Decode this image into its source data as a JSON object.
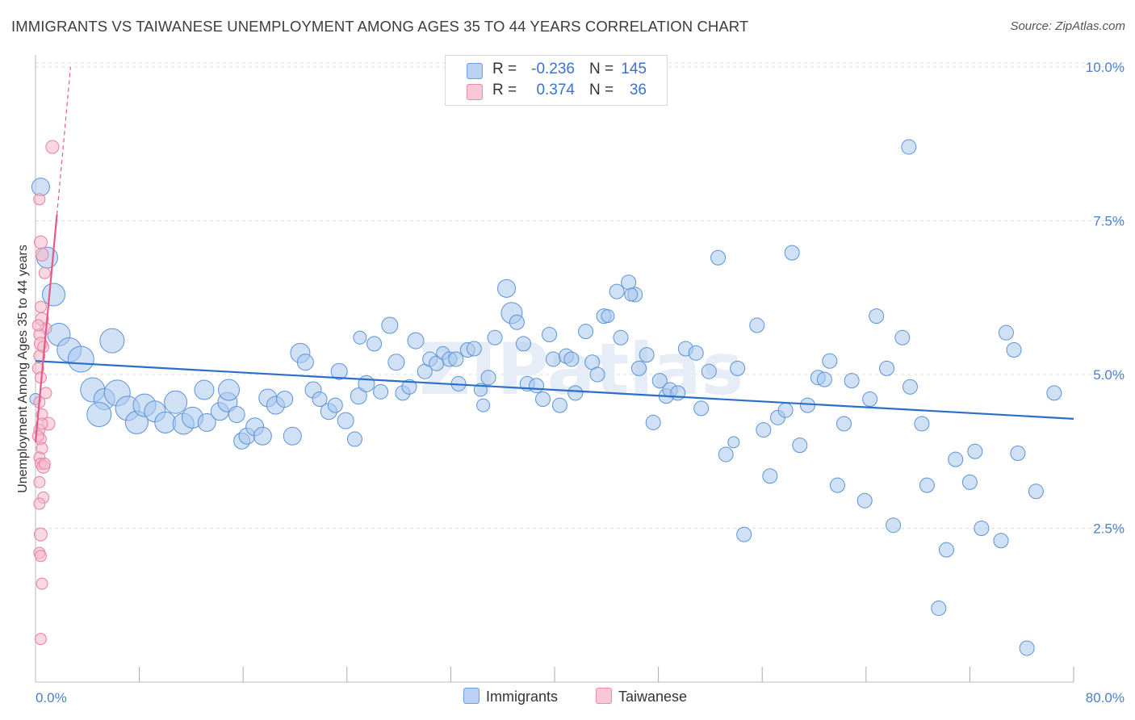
{
  "title": "IMMIGRANTS VS TAIWANESE UNEMPLOYMENT AMONG AGES 35 TO 44 YEARS CORRELATION CHART",
  "source": "Source: ZipAtlas.com",
  "watermark": "ZIPatlas",
  "legend": {
    "immigrants": {
      "r_label": "R =",
      "r_value": "-0.236",
      "n_label": "N =",
      "n_value": "145"
    },
    "taiwanese": {
      "r_label": "R =",
      "r_value": "0.374",
      "n_label": "N =",
      "n_value": "36"
    }
  },
  "bottom_legend": {
    "immigrants": "Immigrants",
    "taiwanese": "Taiwanese"
  },
  "colors": {
    "immigrants_fill": "#a9c8ef",
    "immigrants_stroke": "#5b93d8",
    "immigrants_line": "#2a6fc9",
    "taiwanese_fill": "#f6b8cb",
    "taiwanese_stroke": "#e87fa0",
    "taiwanese_line": "#e35a8a",
    "axis_text": "#4a7fd0",
    "grid": "#dddddd"
  },
  "chart_data": {
    "type": "scatter",
    "title": "IMMIGRANTS VS TAIWANESE UNEMPLOYMENT AMONG AGES 35 TO 44 YEARS CORRELATION CHART",
    "xlabel": "",
    "ylabel": "Unemployment Among Ages 35 to 44 years",
    "xlim": [
      0,
      80
    ],
    "ylim": [
      0,
      10.5
    ],
    "x_tick_labels": [
      "0.0%",
      "80.0%"
    ],
    "y_ticks": [
      2.5,
      5.0,
      7.5,
      10.0
    ],
    "y_tick_labels": [
      "2.5%",
      "5.0%",
      "7.5%",
      "10.0%"
    ],
    "grid": "horizontal dashed",
    "legend_position": "top-center",
    "series": [
      {
        "name": "Immigrants",
        "trend": {
          "x": [
            0,
            80
          ],
          "y": [
            5.22,
            4.28
          ]
        },
        "points": [
          [
            0.4,
            8.05,
            11
          ],
          [
            0.9,
            6.9,
            13
          ],
          [
            1.4,
            6.3,
            14
          ],
          [
            1.8,
            5.65,
            14
          ],
          [
            2.6,
            5.4,
            15
          ],
          [
            3.5,
            5.25,
            16
          ],
          [
            5.9,
            5.55,
            15
          ],
          [
            4.4,
            4.75,
            15
          ],
          [
            5.3,
            4.6,
            13
          ],
          [
            6.3,
            4.7,
            16
          ],
          [
            4.9,
            4.35,
            15
          ],
          [
            7.1,
            4.45,
            15
          ],
          [
            7.8,
            4.22,
            14
          ],
          [
            8.4,
            4.5,
            14
          ],
          [
            9.2,
            4.4,
            13
          ],
          [
            10.0,
            4.22,
            13
          ],
          [
            10.8,
            4.55,
            14
          ],
          [
            11.4,
            4.2,
            13
          ],
          [
            12.1,
            4.3,
            13
          ],
          [
            13.2,
            4.22,
            11
          ],
          [
            13.0,
            4.75,
            12
          ],
          [
            14.2,
            4.4,
            11
          ],
          [
            14.8,
            4.55,
            12
          ],
          [
            14.9,
            4.75,
            13
          ],
          [
            15.5,
            4.35,
            10
          ],
          [
            15.9,
            3.92,
            10
          ],
          [
            16.3,
            4.0,
            10
          ],
          [
            16.9,
            4.15,
            11
          ],
          [
            17.5,
            4.0,
            11
          ],
          [
            17.9,
            4.62,
            11
          ],
          [
            18.5,
            4.5,
            11
          ],
          [
            19.2,
            4.6,
            10
          ],
          [
            19.8,
            4.0,
            11
          ],
          [
            20.4,
            5.35,
            12
          ],
          [
            20.8,
            5.2,
            10
          ],
          [
            21.4,
            4.75,
            10
          ],
          [
            21.9,
            4.6,
            9
          ],
          [
            22.6,
            4.4,
            10
          ],
          [
            23.1,
            4.5,
            9
          ],
          [
            23.4,
            5.05,
            10
          ],
          [
            23.9,
            4.25,
            10
          ],
          [
            24.6,
            3.95,
            9
          ],
          [
            24.9,
            4.65,
            10
          ],
          [
            25.5,
            4.85,
            10
          ],
          [
            26.1,
            5.5,
            9
          ],
          [
            26.6,
            4.72,
            9
          ],
          [
            27.3,
            5.8,
            10
          ],
          [
            27.8,
            5.2,
            10
          ],
          [
            28.3,
            4.7,
            9
          ],
          [
            28.8,
            4.8,
            9
          ],
          [
            29.3,
            5.55,
            10
          ],
          [
            30.0,
            5.05,
            9
          ],
          [
            30.4,
            5.25,
            9
          ],
          [
            30.9,
            5.18,
            9
          ],
          [
            31.4,
            5.35,
            8
          ],
          [
            31.9,
            5.25,
            9
          ],
          [
            32.4,
            5.25,
            9
          ],
          [
            32.6,
            4.85,
            9
          ],
          [
            33.3,
            5.4,
            9
          ],
          [
            33.8,
            5.42,
            9
          ],
          [
            34.3,
            4.75,
            8
          ],
          [
            34.9,
            4.95,
            9
          ],
          [
            35.4,
            5.6,
            9
          ],
          [
            36.3,
            6.4,
            11
          ],
          [
            36.7,
            6.0,
            13
          ],
          [
            37.1,
            5.85,
            9
          ],
          [
            37.6,
            5.5,
            9
          ],
          [
            37.9,
            4.85,
            9
          ],
          [
            38.6,
            4.82,
            9
          ],
          [
            39.1,
            4.6,
            9
          ],
          [
            39.6,
            5.65,
            9
          ],
          [
            39.9,
            5.25,
            9
          ],
          [
            40.4,
            4.5,
            9
          ],
          [
            40.9,
            5.3,
            9
          ],
          [
            41.3,
            5.25,
            9
          ],
          [
            41.6,
            4.7,
            9
          ],
          [
            42.4,
            5.7,
            9
          ],
          [
            42.9,
            5.2,
            9
          ],
          [
            43.3,
            5.0,
            9
          ],
          [
            43.8,
            5.95,
            9
          ],
          [
            44.1,
            5.95,
            8
          ],
          [
            44.8,
            6.35,
            9
          ],
          [
            45.1,
            5.6,
            9
          ],
          [
            45.7,
            6.5,
            9
          ],
          [
            46.2,
            6.3,
            9
          ],
          [
            46.5,
            5.1,
            9
          ],
          [
            47.1,
            5.32,
            9
          ],
          [
            47.6,
            4.22,
            9
          ],
          [
            48.1,
            4.9,
            9
          ],
          [
            48.6,
            4.65,
            9
          ],
          [
            48.9,
            4.75,
            9
          ],
          [
            49.5,
            4.7,
            9
          ],
          [
            50.1,
            5.42,
            9
          ],
          [
            50.9,
            5.35,
            9
          ],
          [
            51.3,
            4.45,
            9
          ],
          [
            51.9,
            5.05,
            9
          ],
          [
            52.6,
            6.9,
            9
          ],
          [
            53.2,
            3.7,
            9
          ],
          [
            54.1,
            5.1,
            9
          ],
          [
            54.6,
            2.4,
            9
          ],
          [
            55.6,
            5.8,
            9
          ],
          [
            56.1,
            4.1,
            9
          ],
          [
            56.6,
            3.35,
            9
          ],
          [
            57.2,
            4.3,
            9
          ],
          [
            57.8,
            4.42,
            9
          ],
          [
            58.3,
            6.98,
            9
          ],
          [
            58.9,
            3.85,
            9
          ],
          [
            59.5,
            4.5,
            9
          ],
          [
            60.3,
            4.95,
            9
          ],
          [
            60.8,
            4.92,
            9
          ],
          [
            61.2,
            5.22,
            9
          ],
          [
            61.8,
            3.2,
            9
          ],
          [
            62.3,
            4.2,
            9
          ],
          [
            62.9,
            4.9,
            9
          ],
          [
            63.9,
            2.95,
            9
          ],
          [
            64.3,
            4.6,
            9
          ],
          [
            64.8,
            5.95,
            9
          ],
          [
            65.6,
            5.1,
            9
          ],
          [
            66.1,
            2.55,
            9
          ],
          [
            66.8,
            5.6,
            9
          ],
          [
            67.3,
            8.7,
            9
          ],
          [
            67.4,
            4.8,
            9
          ],
          [
            68.3,
            4.2,
            9
          ],
          [
            68.7,
            3.2,
            9
          ],
          [
            69.6,
            1.2,
            9
          ],
          [
            70.2,
            2.15,
            9
          ],
          [
            70.9,
            3.62,
            9
          ],
          [
            72.0,
            3.25,
            9
          ],
          [
            72.4,
            3.75,
            9
          ],
          [
            72.9,
            2.5,
            9
          ],
          [
            74.4,
            2.3,
            9
          ],
          [
            74.8,
            5.68,
            9
          ],
          [
            75.4,
            5.4,
            9
          ],
          [
            75.7,
            3.72,
            9
          ],
          [
            76.4,
            0.55,
            9
          ],
          [
            77.1,
            3.1,
            9
          ],
          [
            78.5,
            4.7,
            9
          ],
          [
            0.0,
            4.6,
            7
          ],
          [
            45.9,
            6.3,
            8
          ],
          [
            25.0,
            5.6,
            8
          ],
          [
            34.5,
            4.5,
            8
          ],
          [
            53.8,
            3.9,
            7
          ]
        ]
      },
      {
        "name": "Taiwanese",
        "trend": {
          "x": [
            0.0,
            1.65
          ],
          "y": [
            3.9,
            7.6
          ]
        },
        "trend_extended": {
          "x": [
            1.65,
            2.7
          ],
          "y": [
            7.6,
            10.0
          ]
        },
        "points": [
          [
            1.3,
            8.7,
            8
          ],
          [
            0.3,
            7.85,
            7
          ],
          [
            0.4,
            7.15,
            8
          ],
          [
            0.5,
            6.95,
            8
          ],
          [
            0.7,
            6.65,
            7
          ],
          [
            0.4,
            6.1,
            7
          ],
          [
            0.5,
            5.9,
            8
          ],
          [
            0.8,
            5.75,
            7
          ],
          [
            0.3,
            5.65,
            7
          ],
          [
            0.4,
            5.5,
            8
          ],
          [
            0.3,
            5.3,
            7
          ],
          [
            0.2,
            5.1,
            7
          ],
          [
            0.4,
            4.95,
            7
          ],
          [
            0.8,
            4.7,
            7
          ],
          [
            0.3,
            4.55,
            7
          ],
          [
            0.5,
            4.35,
            7
          ],
          [
            1.0,
            4.2,
            8
          ],
          [
            0.3,
            4.1,
            7
          ],
          [
            0.4,
            3.95,
            7
          ],
          [
            0.5,
            3.8,
            7
          ],
          [
            0.3,
            3.65,
            7
          ],
          [
            0.4,
            3.55,
            7
          ],
          [
            0.6,
            3.5,
            8
          ],
          [
            0.3,
            3.25,
            7
          ],
          [
            0.6,
            3.0,
            7
          ],
          [
            0.4,
            2.4,
            8
          ],
          [
            0.3,
            2.1,
            7
          ],
          [
            0.4,
            2.05,
            7
          ],
          [
            0.5,
            1.6,
            7
          ],
          [
            0.4,
            0.7,
            7
          ],
          [
            0.2,
            4.0,
            7
          ],
          [
            0.6,
            5.45,
            7
          ],
          [
            0.2,
            5.8,
            7
          ],
          [
            0.5,
            4.2,
            7
          ],
          [
            0.7,
            3.55,
            7
          ],
          [
            0.3,
            2.9,
            7
          ]
        ]
      }
    ]
  }
}
